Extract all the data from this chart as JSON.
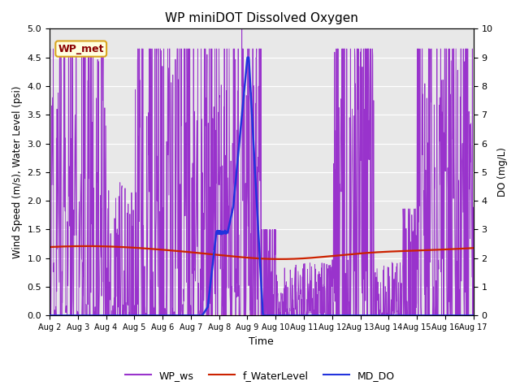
{
  "title": "WP miniDOT Dissolved Oxygen",
  "ylabel_left": "Wind Speed (m/s), Water Level (psi)",
  "ylabel_right": "DO (mg/L)",
  "xlabel": "Time",
  "ylim_left": [
    0.0,
    5.0
  ],
  "ylim_right": [
    0.0,
    10.0
  ],
  "yticks_left": [
    0.0,
    0.5,
    1.0,
    1.5,
    2.0,
    2.5,
    3.0,
    3.5,
    4.0,
    4.5,
    5.0
  ],
  "yticks_right": [
    0.0,
    1.0,
    2.0,
    3.0,
    4.0,
    5.0,
    6.0,
    7.0,
    8.0,
    9.0,
    10.0
  ],
  "xtick_labels": [
    "Aug 2",
    "Aug 3",
    "Aug 4",
    "Aug 5",
    "Aug 6",
    "Aug 7",
    "Aug 8",
    "Aug 9",
    "Aug 10",
    "Aug 11",
    "Aug 12",
    "Aug 13",
    "Aug 14",
    "Aug 15",
    "Aug 16",
    "Aug 17"
  ],
  "xtick_positions": [
    0,
    1,
    2,
    3,
    4,
    5,
    6,
    7,
    8,
    9,
    10,
    11,
    12,
    13,
    14,
    15
  ],
  "color_ws": "#9933CC",
  "color_wl": "#CC2200",
  "color_do": "#2233DD",
  "legend_label_ws": "WP_ws",
  "legend_label_wl": "f_WaterLevel",
  "legend_label_do": "MD_DO",
  "annotation_text": "WP_met",
  "background_color": "#e8e8e8",
  "seed": 7
}
